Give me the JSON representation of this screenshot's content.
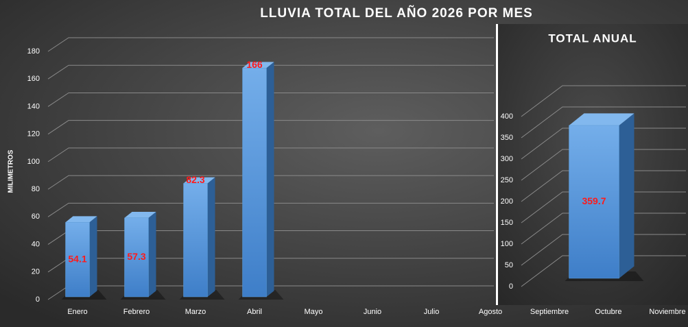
{
  "chart_data": [
    {
      "type": "bar",
      "title": "LLUVIA TOTAL DEL AÑO 2026 POR MES",
      "y_label": "MILIMETROS",
      "categories": [
        "Enero",
        "Febrero",
        "Marzo",
        "Abril",
        "Mayo",
        "Junio",
        "Julio",
        "Agosto",
        "Septiembre",
        "Octubre",
        "Noviembre"
      ],
      "values": [
        54.1,
        57.3,
        82.3,
        166,
        null,
        null,
        null,
        null,
        null,
        null,
        null
      ],
      "color": "#5b9bd5",
      "label_color": "#ff1a1a",
      "ylim": [
        0,
        180
      ],
      "yticks": [
        0,
        20,
        40,
        60,
        80,
        100,
        120,
        140,
        160,
        180
      ],
      "grid": true
    },
    {
      "type": "bar",
      "title": "TOTAL ANUAL",
      "categories": [
        null
      ],
      "values": [
        359.7
      ],
      "color": "#5b9bd5",
      "label_color": "#ff1a1a",
      "ylim": [
        0,
        400
      ],
      "yticks": [
        0,
        50,
        100,
        150,
        200,
        250,
        300,
        350,
        400
      ],
      "grid": true
    }
  ]
}
